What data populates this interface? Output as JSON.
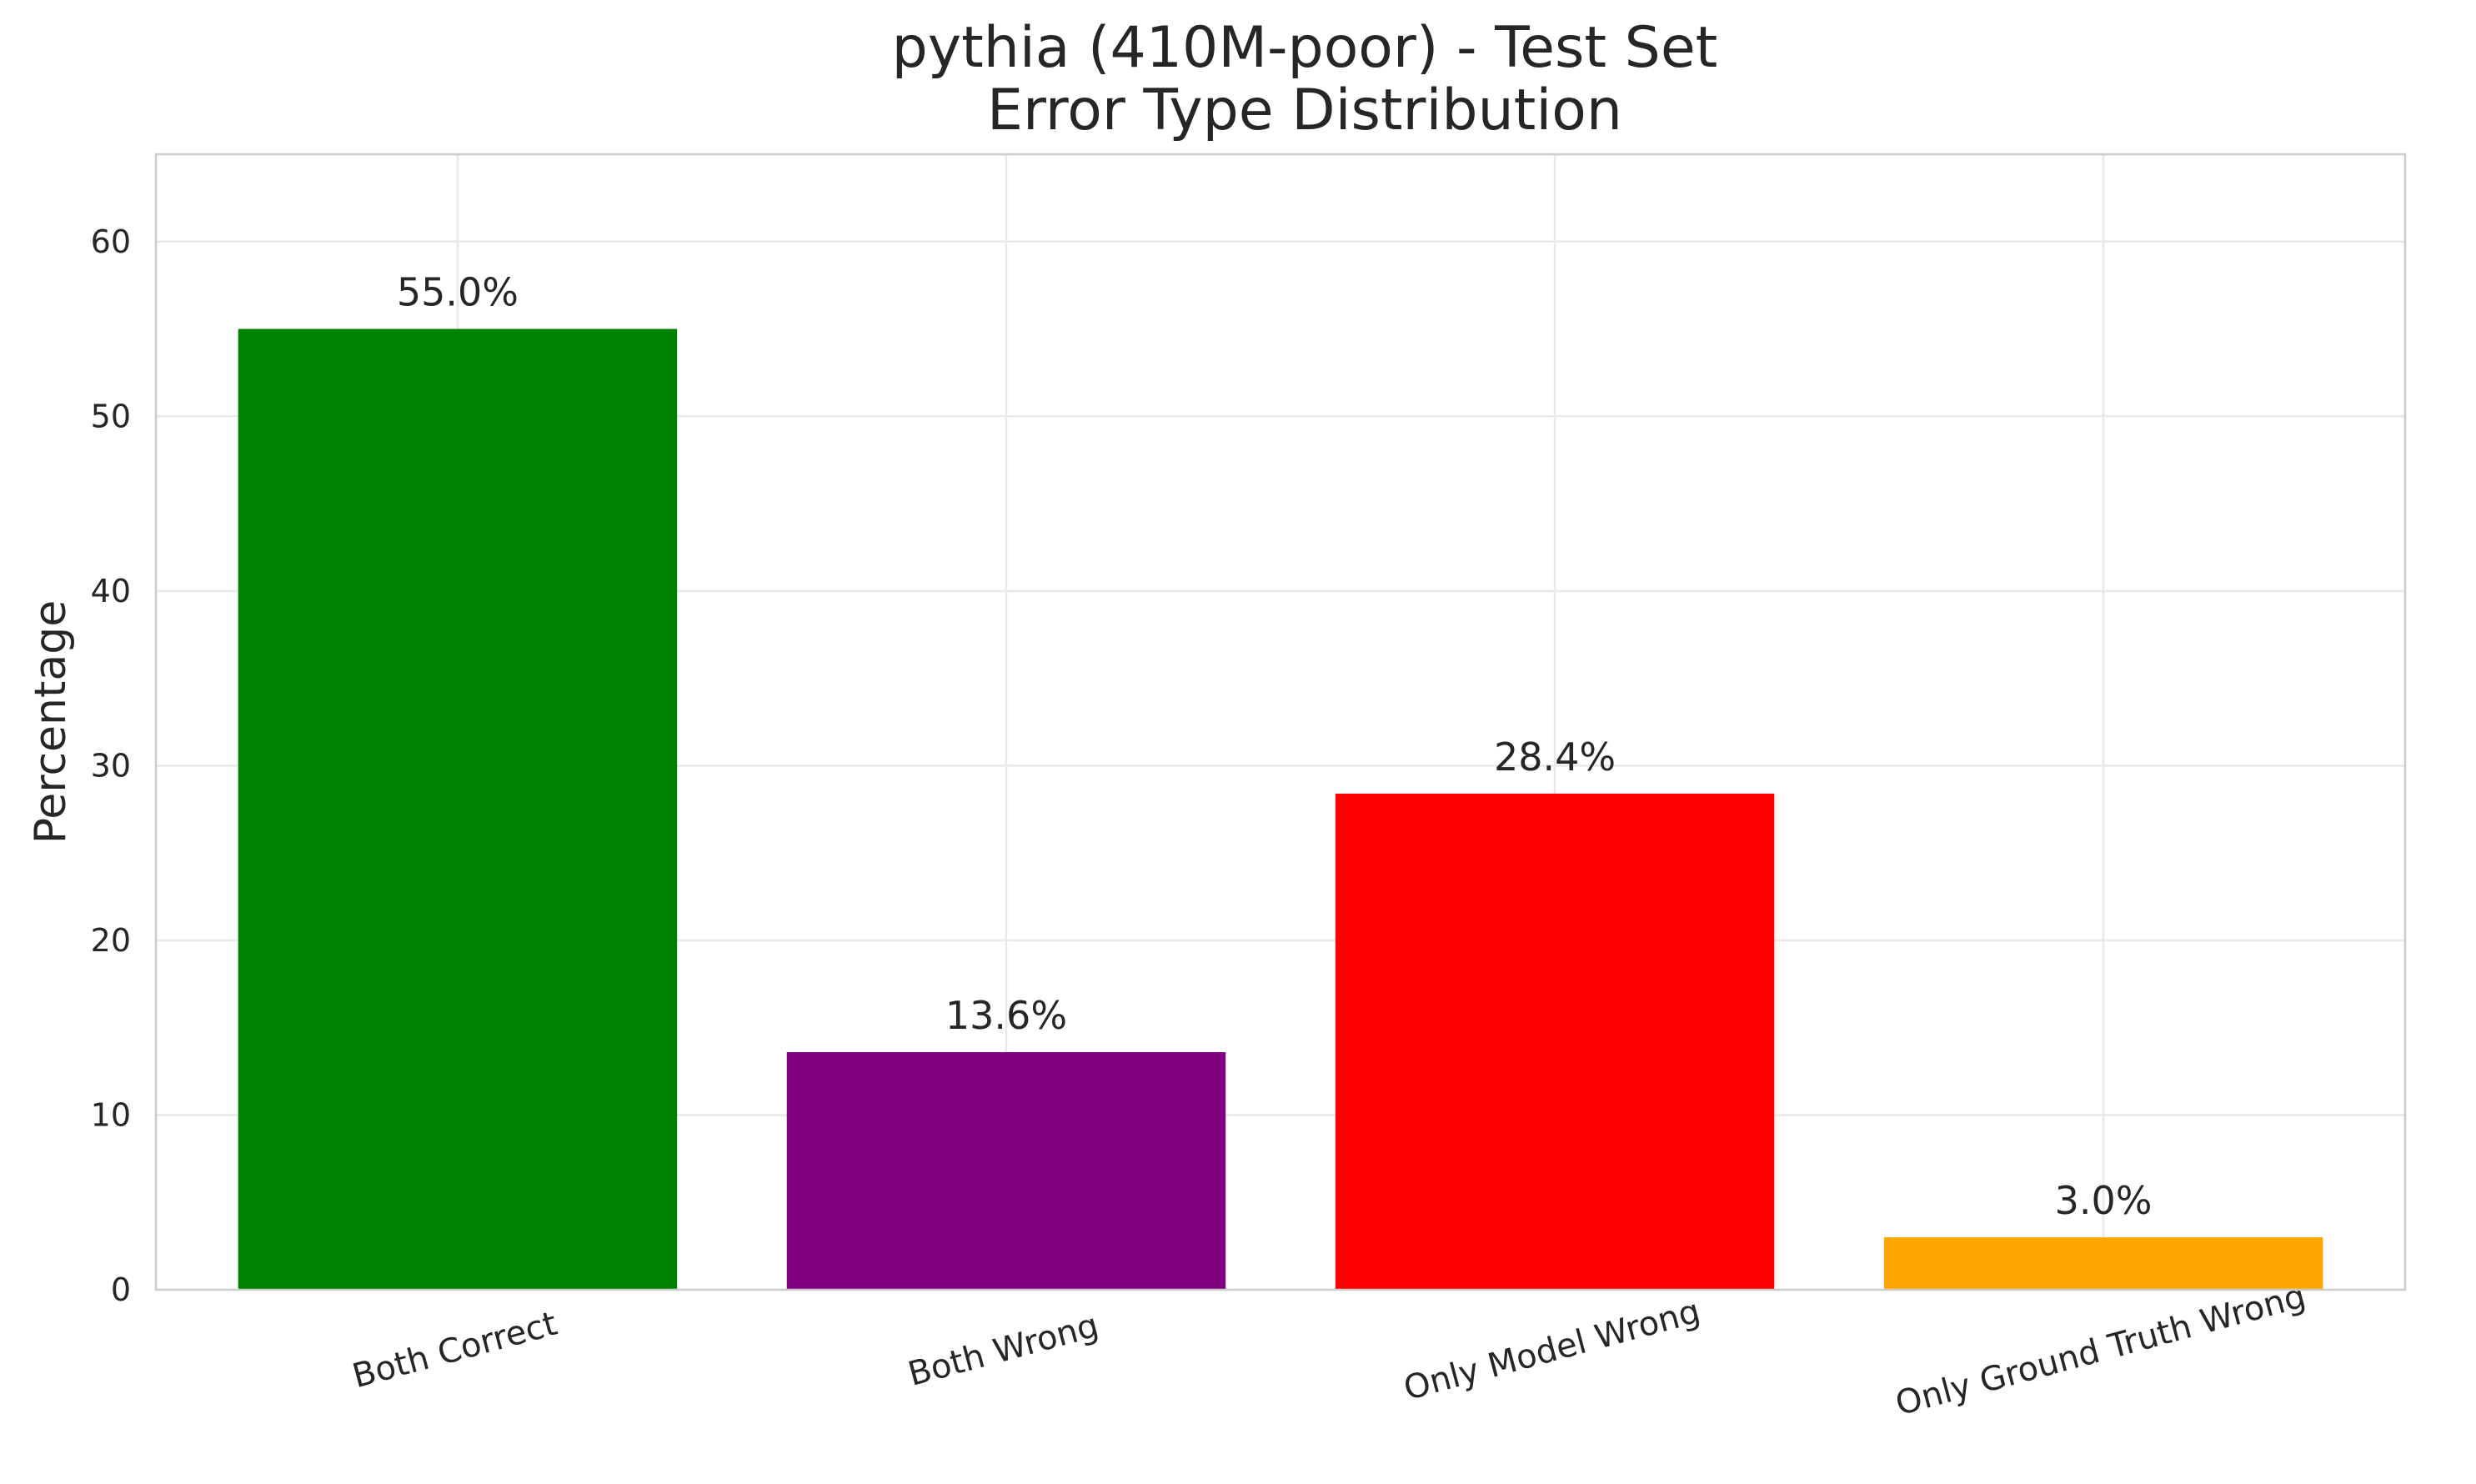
{
  "chart_data": {
    "type": "bar",
    "title": [
      "pythia (410M-poor) - Test Set",
      "Error Type Distribution"
    ],
    "xlabel": "",
    "ylabel": "Percentage",
    "categories": [
      "Both Correct",
      "Both Wrong",
      "Only Model Wrong",
      "Only Ground Truth Wrong"
    ],
    "values": [
      55.0,
      13.6,
      28.4,
      3.0
    ],
    "value_labels": [
      "55.0%",
      "13.6%",
      "28.4%",
      "3.0%"
    ],
    "colors": [
      "#008000",
      "#800080",
      "#ff0000",
      "#ffa500"
    ],
    "ylim": [
      0,
      65
    ],
    "yticks": [
      0,
      10,
      20,
      30,
      40,
      50,
      60
    ],
    "grid": true,
    "legend": "none"
  }
}
